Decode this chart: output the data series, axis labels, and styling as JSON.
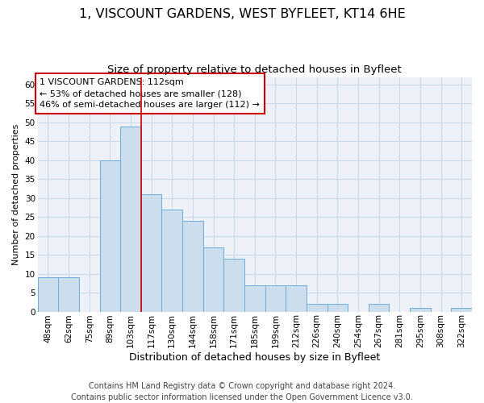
{
  "title_line1": "1, VISCOUNT GARDENS, WEST BYFLEET, KT14 6HE",
  "title_line2": "Size of property relative to detached houses in Byfleet",
  "xlabel": "Distribution of detached houses by size in Byfleet",
  "ylabel": "Number of detached properties",
  "categories": [
    "48sqm",
    "62sqm",
    "75sqm",
    "89sqm",
    "103sqm",
    "117sqm",
    "130sqm",
    "144sqm",
    "158sqm",
    "171sqm",
    "185sqm",
    "199sqm",
    "212sqm",
    "226sqm",
    "240sqm",
    "254sqm",
    "267sqm",
    "281sqm",
    "295sqm",
    "308sqm",
    "322sqm"
  ],
  "values": [
    9,
    9,
    0,
    40,
    49,
    31,
    27,
    24,
    17,
    14,
    7,
    7,
    7,
    2,
    2,
    0,
    2,
    0,
    1,
    0,
    1
  ],
  "bar_color": "#ccdded",
  "bar_edge_color": "#6aaed6",
  "grid_color": "#c8d8e8",
  "background_color": "#eef2f8",
  "annotation_text": "1 VISCOUNT GARDENS: 112sqm\n← 53% of detached houses are smaller (128)\n46% of semi-detached houses are larger (112) →",
  "annotation_box_color": "#ffffff",
  "annotation_box_edge": "#cc0000",
  "vline_x_index": 4.5,
  "vline_color": "#cc0000",
  "ylim": [
    0,
    62
  ],
  "yticks": [
    0,
    5,
    10,
    15,
    20,
    25,
    30,
    35,
    40,
    45,
    50,
    55,
    60
  ],
  "footer_text": "Contains HM Land Registry data © Crown copyright and database right 2024.\nContains public sector information licensed under the Open Government Licence v3.0.",
  "title_fontsize": 11.5,
  "subtitle_fontsize": 9.5,
  "xlabel_fontsize": 9,
  "ylabel_fontsize": 8,
  "tick_fontsize": 7.5,
  "annotation_fontsize": 8,
  "footer_fontsize": 7
}
